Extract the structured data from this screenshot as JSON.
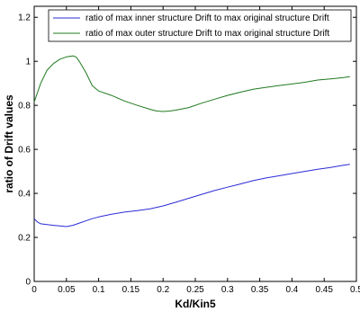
{
  "chart_data": {
    "type": "line",
    "xlabel": "Kd/Kin5",
    "ylabel": "ratio of Drift values",
    "xlim": [
      0,
      0.5
    ],
    "ylim": [
      0,
      1.25
    ],
    "xticks": [
      "0",
      "0.05",
      "0.1",
      "0.15",
      "0.2",
      "0.25",
      "0.3",
      "0.35",
      "0.4",
      "0.45",
      "0.5"
    ],
    "yticks": [
      "0",
      "0.2",
      "0.4",
      "0.6",
      "0.8",
      "1",
      "1.2"
    ],
    "grid": false,
    "legend_position": "top-right",
    "series": [
      {
        "name": "ratio of max inner structure Drift to max original structure Drift",
        "color": "#2b2bd6",
        "x": [
          0,
          0.005,
          0.01,
          0.02,
          0.03,
          0.04,
          0.05,
          0.06,
          0.07,
          0.08,
          0.09,
          0.1,
          0.12,
          0.14,
          0.16,
          0.18,
          0.2,
          0.22,
          0.24,
          0.26,
          0.28,
          0.3,
          0.32,
          0.34,
          0.36,
          0.38,
          0.4,
          0.42,
          0.44,
          0.46,
          0.48,
          0.49
        ],
        "y": [
          0.285,
          0.27,
          0.262,
          0.258,
          0.255,
          0.252,
          0.249,
          0.255,
          0.265,
          0.275,
          0.285,
          0.293,
          0.305,
          0.315,
          0.322,
          0.33,
          0.343,
          0.36,
          0.378,
          0.396,
          0.413,
          0.428,
          0.443,
          0.458,
          0.47,
          0.48,
          0.49,
          0.5,
          0.51,
          0.518,
          0.528,
          0.532
        ]
      },
      {
        "name": "ratio of max outer structure Drift to max original structure Drift",
        "color": "#1f7a1f",
        "x": [
          0,
          0.01,
          0.02,
          0.03,
          0.04,
          0.05,
          0.06,
          0.065,
          0.07,
          0.08,
          0.09,
          0.1,
          0.12,
          0.14,
          0.16,
          0.18,
          0.19,
          0.2,
          0.21,
          0.22,
          0.24,
          0.26,
          0.28,
          0.3,
          0.32,
          0.34,
          0.36,
          0.38,
          0.4,
          0.42,
          0.44,
          0.46,
          0.48,
          0.49
        ],
        "y": [
          0.815,
          0.9,
          0.96,
          0.99,
          1.01,
          1.02,
          1.025,
          1.02,
          1.0,
          0.95,
          0.89,
          0.865,
          0.845,
          0.82,
          0.8,
          0.782,
          0.774,
          0.772,
          0.774,
          0.778,
          0.79,
          0.81,
          0.828,
          0.845,
          0.86,
          0.873,
          0.882,
          0.89,
          0.897,
          0.905,
          0.915,
          0.92,
          0.926,
          0.93
        ]
      }
    ]
  }
}
